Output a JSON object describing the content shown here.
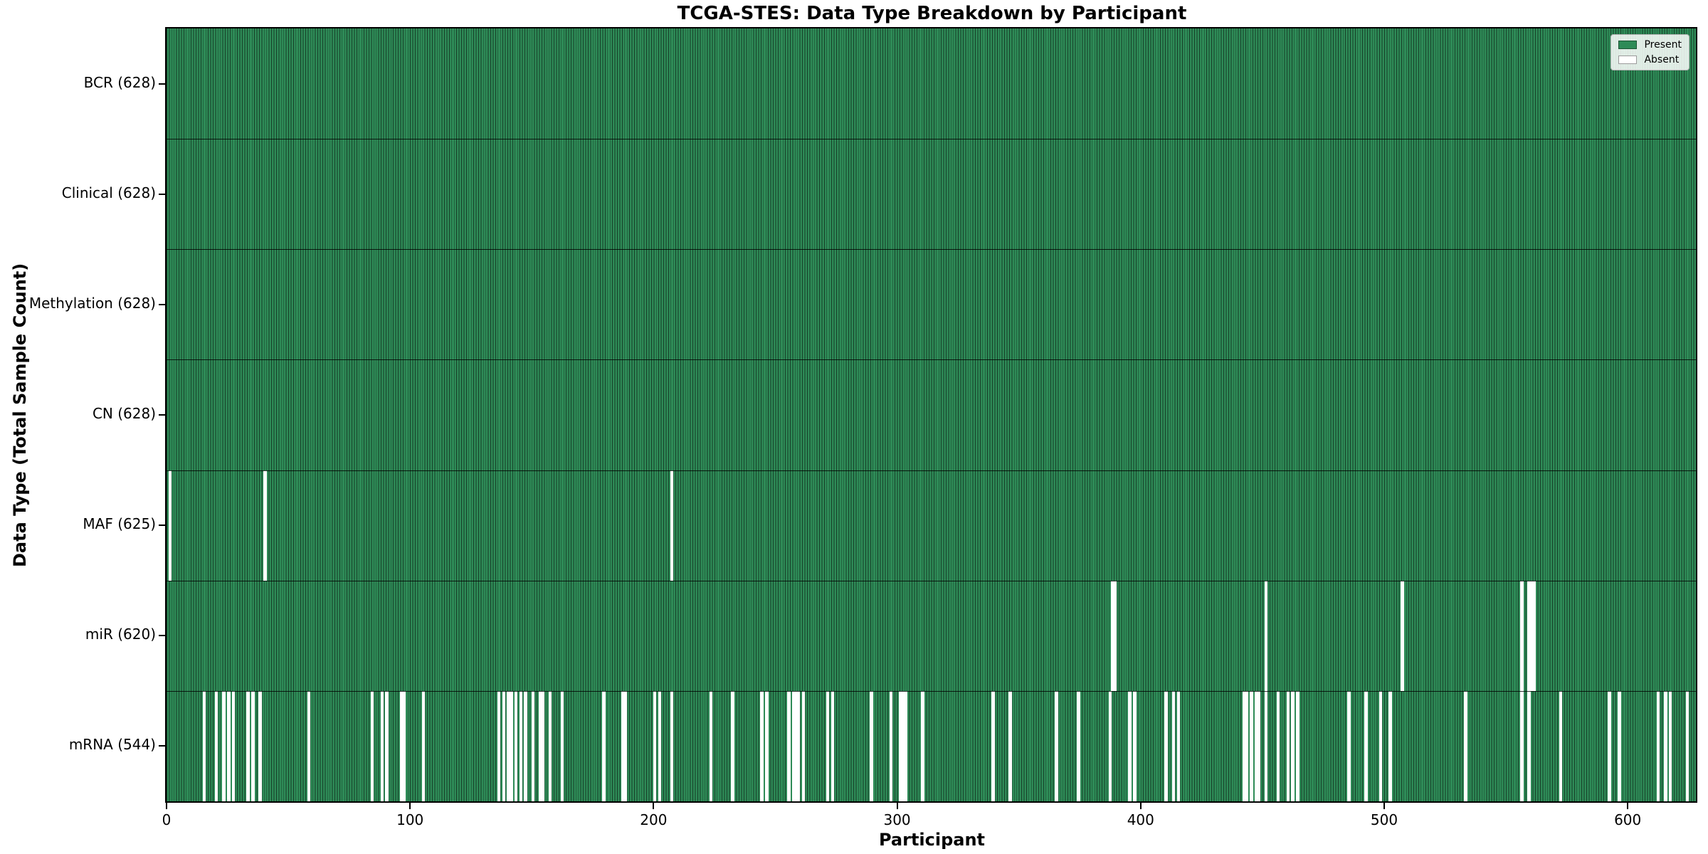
{
  "chart_data": {
    "type": "heatmap",
    "title": "TCGA-STES: Data Type Breakdown by Participant",
    "xlabel": "Participant",
    "ylabel": "Data Type (Total Sample Count)",
    "n_participants": 628,
    "x_ticks": [
      0,
      100,
      200,
      300,
      400,
      500,
      600
    ],
    "grid": false,
    "legend_position": "upper right",
    "legend": [
      {
        "label": "Present",
        "color": "#2e8b57"
      },
      {
        "label": "Absent",
        "color": "#ffffff"
      }
    ],
    "colors": {
      "present": "#2e8b57",
      "absent": "#ffffff",
      "bar_edge": "#163d27",
      "legend_border": "#b0b0b0"
    },
    "rows": [
      {
        "name": "BCR",
        "count": 628,
        "label": "BCR (628)",
        "absent": []
      },
      {
        "name": "Clinical",
        "count": 628,
        "label": "Clinical (628)",
        "absent": []
      },
      {
        "name": "Methylation",
        "count": 628,
        "label": "Methylation (628)",
        "absent": []
      },
      {
        "name": "CN",
        "count": 628,
        "label": "CN (628)",
        "absent": []
      },
      {
        "name": "MAF",
        "count": 625,
        "label": "MAF (625)",
        "absent": [
          1,
          40,
          207
        ]
      },
      {
        "name": "miR",
        "count": 620,
        "label": "miR (620)",
        "absent": [
          388,
          389,
          451,
          507,
          556,
          559,
          560,
          561
        ]
      },
      {
        "name": "mRNA",
        "count": 544,
        "label": "mRNA (544)",
        "absent": [
          15,
          20,
          23,
          25,
          27,
          33,
          35,
          38,
          58,
          84,
          88,
          90,
          96,
          97,
          105,
          136,
          138,
          140,
          141,
          143,
          145,
          147,
          150,
          153,
          154,
          157,
          162,
          179,
          187,
          188,
          200,
          202,
          207,
          223,
          232,
          244,
          246,
          255,
          257,
          258,
          259,
          261,
          271,
          273,
          289,
          297,
          301,
          302,
          303,
          310,
          339,
          346,
          365,
          374,
          387,
          395,
          397,
          410,
          413,
          415,
          442,
          443,
          445,
          447,
          448,
          451,
          456,
          460,
          462,
          464,
          485,
          492,
          498,
          502,
          533,
          556,
          559,
          572,
          592,
          596,
          612,
          615,
          617,
          624
        ]
      }
    ]
  }
}
